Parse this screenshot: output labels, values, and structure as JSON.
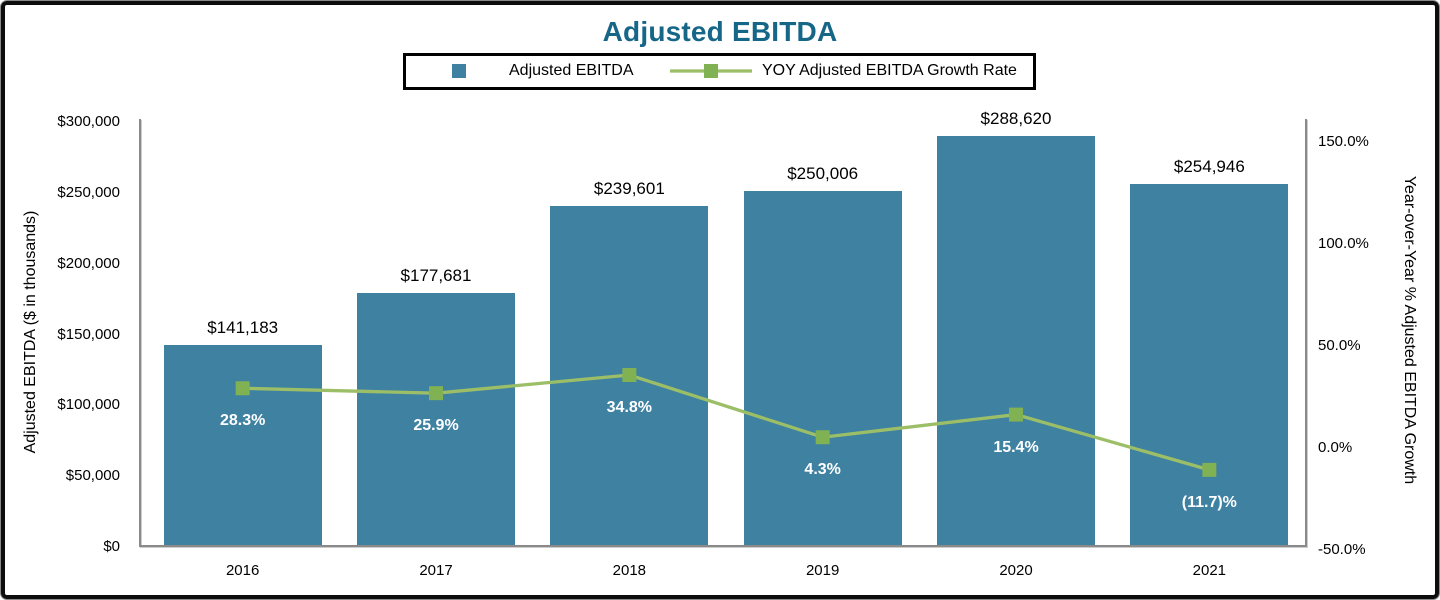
{
  "title": "Adjusted EBITDA",
  "legend": {
    "items": [
      {
        "label": "Adjusted EBITDA",
        "swatch": "square-icon"
      },
      {
        "label": "YOY Adjusted EBITDA Growth Rate",
        "swatch": "line-marker-icon"
      }
    ]
  },
  "axes": {
    "left": {
      "title": "Adjusted EBITDA ($ in thousands)",
      "tick_values": [
        0,
        50000,
        100000,
        150000,
        200000,
        250000,
        300000
      ],
      "tick_labels": [
        "$0",
        "$50,000",
        "$100,000",
        "$150,000",
        "$200,000",
        "$250,000",
        "$300,000"
      ]
    },
    "right": {
      "title": "Year-over-Year % Adjusted EBITDA Growth",
      "tick_values": [
        -50,
        0,
        50,
        100,
        150
      ],
      "tick_labels": [
        "-50.0%",
        "0.0%",
        "50.0%",
        "100.0%",
        "150.0%"
      ]
    },
    "x": {
      "tick_labels": [
        "2016",
        "2017",
        "2018",
        "2019",
        "2020",
        "2021"
      ]
    }
  },
  "chart_data": {
    "type": "bar",
    "subtype": "combo-bar-line",
    "title": "Adjusted EBITDA",
    "categories": [
      "2016",
      "2017",
      "2018",
      "2019",
      "2020",
      "2021"
    ],
    "series": [
      {
        "name": "Adjusted EBITDA",
        "type": "bar",
        "axis": "left",
        "values": [
          141183,
          177681,
          239601,
          250006,
          288620,
          254946
        ],
        "data_labels": [
          "$141,183",
          "$177,681",
          "$239,601",
          "$250,006",
          "$288,620",
          "$254,946"
        ]
      },
      {
        "name": "YOY Adjusted EBITDA Growth Rate",
        "type": "line",
        "axis": "right",
        "marker": "square",
        "values": [
          28.3,
          25.9,
          34.8,
          4.3,
          15.4,
          -11.7
        ],
        "data_labels": [
          "28.3%",
          "25.9%",
          "34.8%",
          "4.3%",
          "15.4%",
          "(11.7)%"
        ]
      }
    ],
    "xlabel": "",
    "ylabel_left": "Adjusted EBITDA ($ in thousands)",
    "ylabel_right": "Year-over-Year % Adjusted EBITDA Growth",
    "left_ylim": [
      0,
      300000
    ],
    "right_ylim": [
      -50,
      160
    ],
    "grid": false,
    "legend_position": "top"
  },
  "colors": {
    "title_text": "#166687",
    "bar": "#3e81a1",
    "line": "#9bbe67",
    "marker": "#80b153",
    "axis_line": "#8a8a8a",
    "bar_label_text": "#000000",
    "pct_label_text": "#ffffff",
    "frame_border": "#0d0d0d",
    "legend_border": "#000000"
  }
}
